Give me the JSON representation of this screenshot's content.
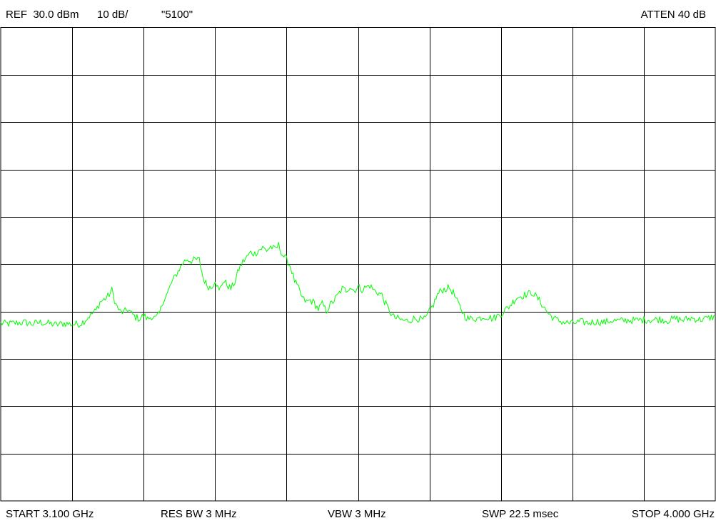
{
  "header": {
    "ref": "REF  30.0 dBm",
    "scale": "10 dB/",
    "title": "\"5100\"",
    "atten": "ATTEN 40 dB"
  },
  "footer": {
    "start": "START 3.100 GHz",
    "res_bw": "RES BW 3 MHz",
    "vbw": "VBW 3 MHz",
    "swp": "SWP 22.5 msec",
    "stop": "STOP 4.000 GHz"
  },
  "colors": {
    "trace": "#00ff00",
    "grid": "#000000",
    "background": "#ffffff"
  },
  "chart_data": {
    "type": "line",
    "title": "\"5100\"",
    "xlabel": "",
    "ylabel": "",
    "xlim": [
      3.1,
      4.0
    ],
    "ylim": [
      -70,
      30
    ],
    "x_divisions": 10,
    "y_divisions": 10,
    "grid": true,
    "series": [
      {
        "x": [
          3.1,
          3.11,
          3.12,
          3.13,
          3.14,
          3.15,
          3.16,
          3.17,
          3.18,
          3.19,
          3.2,
          3.205,
          3.21,
          3.215,
          3.22,
          3.225,
          3.23,
          3.235,
          3.24,
          3.245,
          3.25,
          3.255,
          3.26,
          3.265,
          3.27,
          3.275,
          3.28,
          3.285,
          3.29,
          3.295,
          3.3,
          3.305,
          3.31,
          3.315,
          3.32,
          3.325,
          3.33,
          3.335,
          3.34,
          3.345,
          3.35,
          3.355,
          3.36,
          3.365,
          3.37,
          3.375,
          3.38,
          3.385,
          3.39,
          3.395,
          3.4,
          3.405,
          3.41,
          3.415,
          3.42,
          3.425,
          3.43,
          3.435,
          3.44,
          3.445,
          3.45,
          3.455,
          3.46,
          3.465,
          3.47,
          3.475,
          3.48,
          3.485,
          3.49,
          3.495,
          3.5,
          3.505,
          3.51,
          3.515,
          3.52,
          3.525,
          3.53,
          3.535,
          3.54,
          3.545,
          3.55,
          3.555,
          3.56,
          3.565,
          3.57,
          3.575,
          3.58,
          3.585,
          3.59,
          3.595,
          3.6,
          3.605,
          3.61,
          3.615,
          3.62,
          3.625,
          3.63,
          3.635,
          3.64,
          3.645,
          3.65,
          3.655,
          3.66,
          3.665,
          3.67,
          3.675,
          3.68,
          3.685,
          3.69,
          3.695,
          3.7,
          3.71,
          3.72,
          3.73,
          3.74,
          3.75,
          3.76,
          3.77,
          3.78,
          3.79,
          3.8,
          3.81,
          3.82,
          3.83,
          3.84,
          3.85,
          3.86,
          3.87,
          3.88,
          3.89,
          3.9,
          3.91,
          3.92,
          3.93,
          3.94,
          3.95,
          3.96,
          3.97,
          3.98,
          3.99,
          4.0
        ],
        "y": [
          -32.5,
          -32.6,
          -32.4,
          -32.3,
          -32.6,
          -32.3,
          -32.5,
          -32.8,
          -32.5,
          -32.7,
          -32.6,
          -32.0,
          -31.2,
          -30.5,
          -29.8,
          -28.0,
          -27.5,
          -26.8,
          -25.5,
          -28.5,
          -30.0,
          -30.2,
          -29.5,
          -30.5,
          -31.2,
          -31.5,
          -30.8,
          -31.6,
          -31.0,
          -31.5,
          -30.5,
          -27.5,
          -26.2,
          -24.0,
          -22.5,
          -21.0,
          -19.6,
          -18.9,
          -19.3,
          -19.1,
          -19.0,
          -23.0,
          -24.5,
          -25.0,
          -23.2,
          -25.8,
          -23.5,
          -24.3,
          -25.2,
          -23.7,
          -21.0,
          -19.5,
          -18.5,
          -17.5,
          -17.8,
          -17.0,
          -16.5,
          -17.1,
          -16.3,
          -16.9,
          -16.0,
          -18.0,
          -19.0,
          -20.5,
          -23.5,
          -25.2,
          -27.2,
          -28.0,
          -27.6,
          -28.2,
          -29.5,
          -28.4,
          -29.9,
          -28.6,
          -27.6,
          -26.5,
          -25.2,
          -25.5,
          -24.7,
          -25.6,
          -24.8,
          -25.3,
          -24.9,
          -24.5,
          -25.5,
          -26.0,
          -26.5,
          -28.5,
          -30.0,
          -31.2,
          -31.5,
          -31.8,
          -32.0,
          -31.8,
          -31.5,
          -31.4,
          -31.8,
          -31.6,
          -30.0,
          -28.5,
          -26.5,
          -25.5,
          -25.2,
          -25.0,
          -26.0,
          -28.0,
          -29.5,
          -31.0,
          -31.6,
          -31.4,
          -31.5,
          -31.0,
          -31.5,
          -30.5,
          -29.0,
          -27.0,
          -26.5,
          -26.0,
          -28.0,
          -30.5,
          -31.8,
          -32.3,
          -32.5,
          -32.2,
          -32.4,
          -32.1,
          -32.3,
          -31.9,
          -32.0,
          -31.8,
          -31.9,
          -31.7,
          -31.8,
          -31.6,
          -31.9,
          -31.5,
          -31.8,
          -31.4,
          -31.7,
          -31.5,
          -31.0
        ]
      }
    ]
  }
}
